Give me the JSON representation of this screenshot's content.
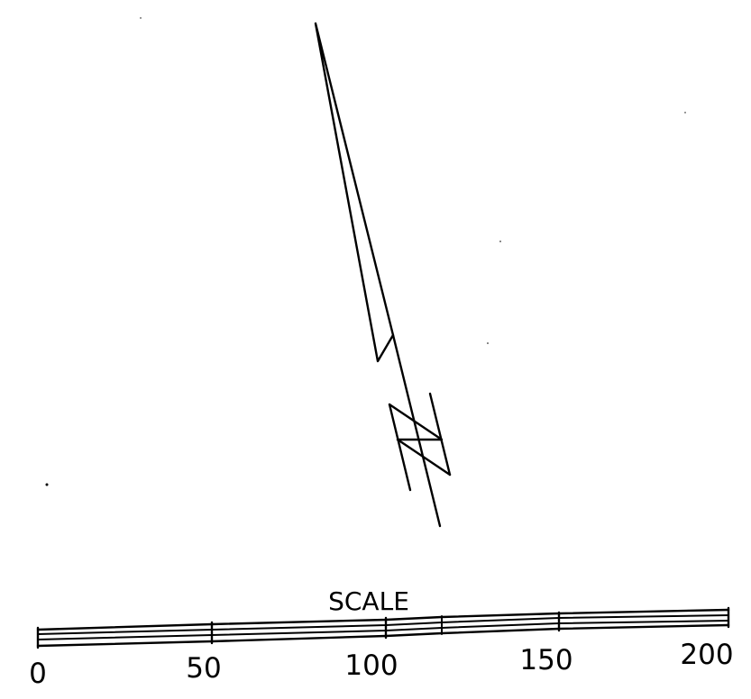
{
  "scale": {
    "title": "SCALE",
    "ticks": [
      {
        "value": 0,
        "label": "0"
      },
      {
        "value": 50,
        "label": "50"
      },
      {
        "value": 100,
        "label": "100"
      },
      {
        "value": 150,
        "label": "150"
      },
      {
        "value": 200,
        "label": "200"
      }
    ]
  },
  "colors": {
    "line": "#000000",
    "background": "#ffffff"
  }
}
